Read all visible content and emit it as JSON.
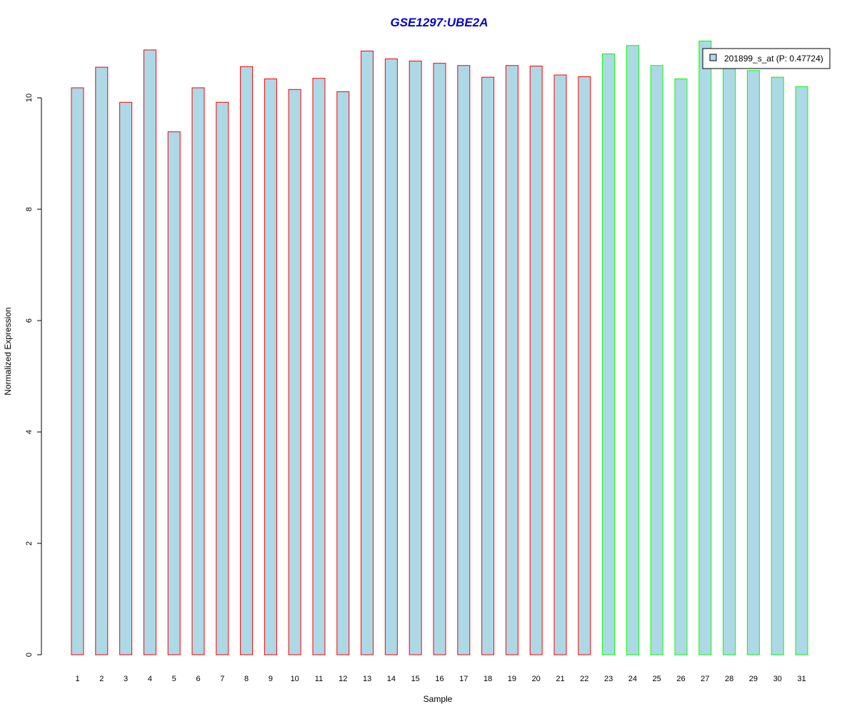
{
  "chart_data": {
    "type": "bar",
    "title": "GSE1297:UBE2A",
    "xlabel": "Sample",
    "ylabel": "Normalized Expression",
    "ylim": [
      0,
      11
    ],
    "yticks": [
      0,
      2,
      4,
      6,
      8,
      10
    ],
    "grid": false,
    "legend": {
      "position": "top-right",
      "label": "201899_s_at (P: 0.47724)"
    },
    "colors": {
      "title": "#0000cc",
      "bar_fill": "#add8e6",
      "group_1_border": "#ff0000",
      "group_2_border": "#00ff00"
    },
    "categories": [
      "1",
      "2",
      "3",
      "4",
      "5",
      "6",
      "7",
      "8",
      "9",
      "10",
      "11",
      "12",
      "13",
      "14",
      "15",
      "16",
      "17",
      "18",
      "19",
      "20",
      "21",
      "22",
      "23",
      "24",
      "25",
      "26",
      "27",
      "28",
      "29",
      "30",
      "31"
    ],
    "values": [
      10.18,
      10.55,
      9.92,
      10.86,
      9.39,
      10.18,
      9.92,
      10.56,
      10.34,
      10.15,
      10.35,
      10.11,
      10.84,
      10.7,
      10.66,
      10.62,
      10.58,
      10.37,
      10.58,
      10.57,
      10.41,
      10.38,
      10.79,
      10.94,
      10.58,
      10.34,
      11.02,
      10.62,
      10.49,
      10.37,
      10.2
    ],
    "groups": [
      1,
      1,
      1,
      1,
      1,
      1,
      1,
      1,
      1,
      1,
      1,
      1,
      1,
      1,
      1,
      1,
      1,
      1,
      1,
      1,
      1,
      1,
      2,
      2,
      2,
      2,
      2,
      2,
      2,
      2,
      2
    ]
  }
}
